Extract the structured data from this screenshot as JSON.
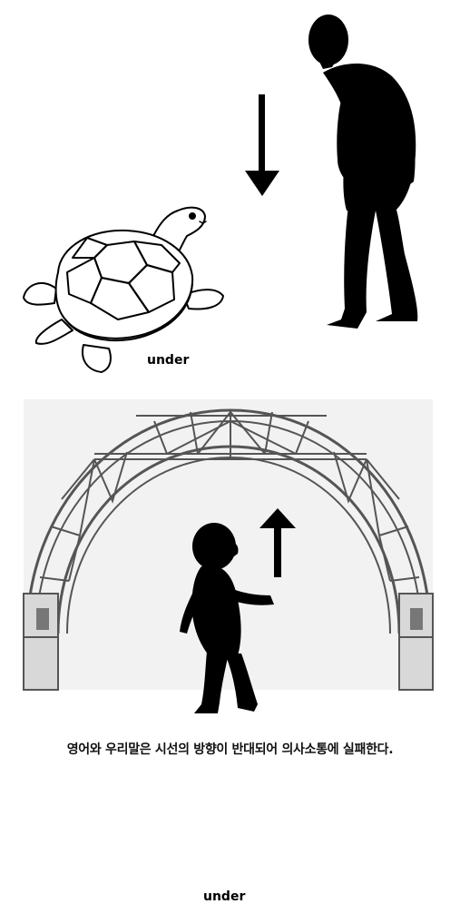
{
  "top_scene": {
    "label": "under"
  },
  "bottom_scene": {
    "label": "under"
  },
  "caption": "영어와 우리말은 시선의 방향이 반대되어 의사소통에 실패한다."
}
